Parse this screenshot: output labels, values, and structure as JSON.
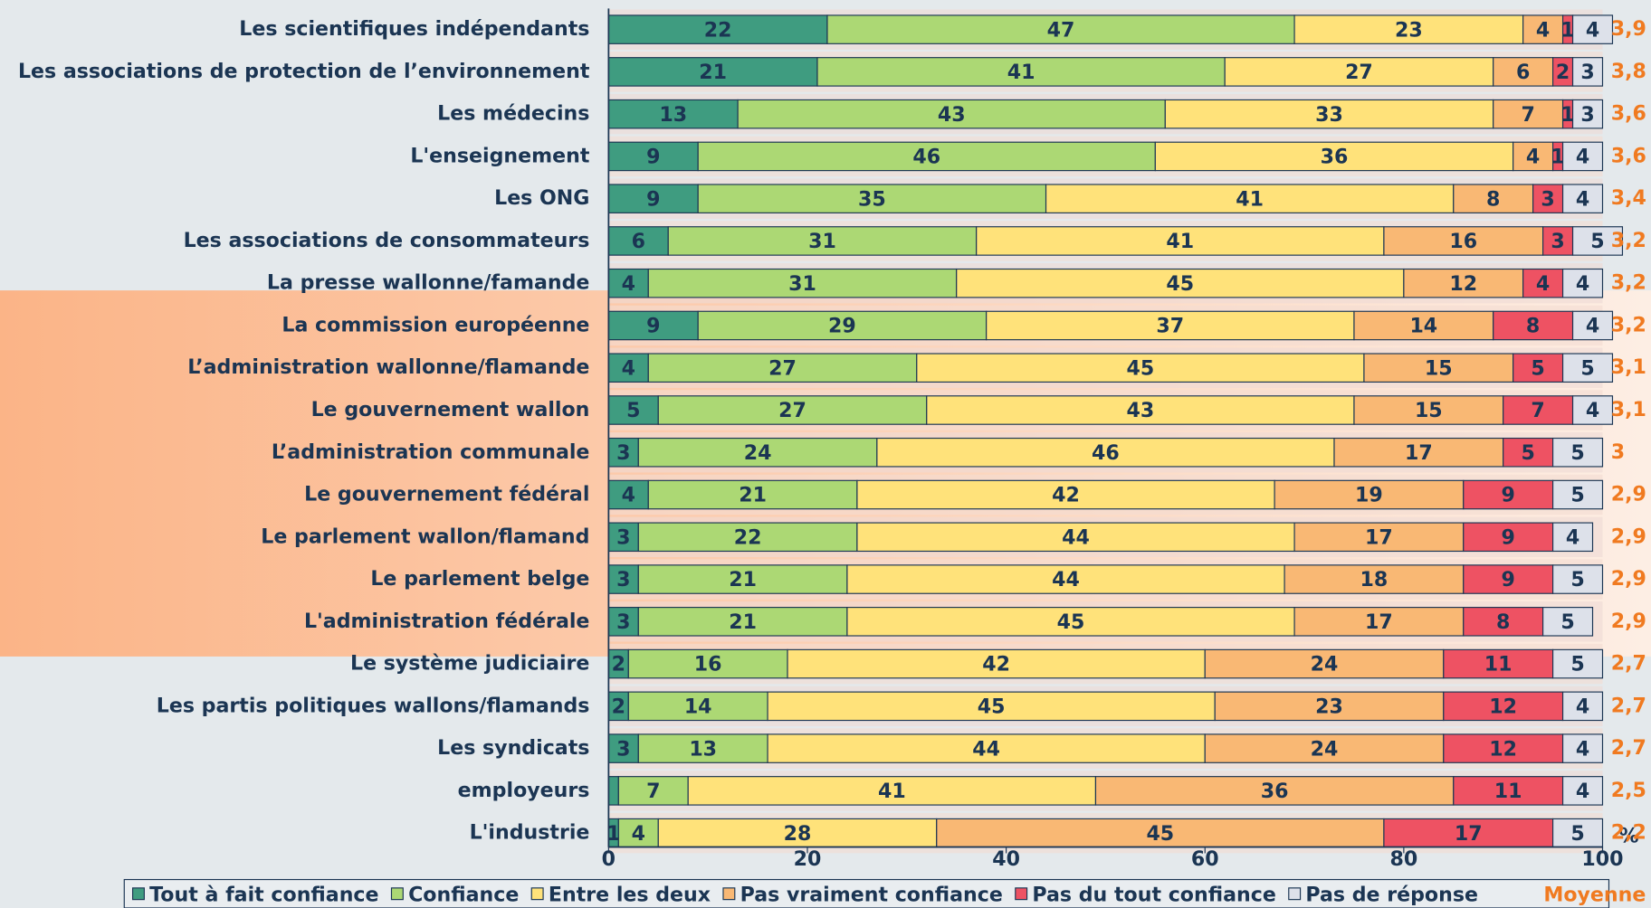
{
  "chart_data": {
    "type": "stacked-bar-horizontal",
    "categories": [
      "Les scientifiques indépendants",
      "Les associations de protection de l’environnement",
      "Les médecins",
      "L'enseignement",
      "Les ONG",
      "Les associations de consommateurs",
      "La presse wallonne/famande",
      "La commission européenne",
      "L’administration wallonne/flamande",
      "Le gouvernement wallon",
      "L’administration communale",
      "Le gouvernement fédéral",
      "Le parlement wallon/flamand",
      "Le parlement belge",
      "L'administration fédérale",
      "Le système judiciaire",
      "Les partis politiques wallons/flamands",
      "Les syndicats",
      "employeurs",
      "L'industrie"
    ],
    "series": [
      {
        "name": "Tout à fait confiance",
        "color": "#3f9c80",
        "values": [
          22,
          21,
          13,
          9,
          9,
          6,
          4,
          9,
          4,
          5,
          3,
          4,
          3,
          3,
          3,
          2,
          2,
          3,
          1,
          1
        ],
        "value_labels": [
          22,
          21,
          13,
          9,
          9,
          6,
          4,
          9,
          4,
          5,
          3,
          4,
          3,
          3,
          3,
          2,
          2,
          3,
          null,
          1
        ]
      },
      {
        "name": "Confiance",
        "color": "#acd874",
        "values": [
          47,
          41,
          43,
          46,
          35,
          31,
          31,
          29,
          27,
          27,
          24,
          21,
          22,
          21,
          21,
          16,
          14,
          13,
          7,
          4
        ]
      },
      {
        "name": "Entre les deux",
        "color": "#ffe27a",
        "values": [
          23,
          27,
          33,
          36,
          41,
          41,
          45,
          37,
          45,
          43,
          46,
          42,
          44,
          44,
          45,
          42,
          45,
          44,
          41,
          28
        ]
      },
      {
        "name": "Pas vraiment confiance",
        "color": "#f9b874",
        "values": [
          4,
          6,
          7,
          4,
          8,
          16,
          12,
          14,
          15,
          15,
          17,
          19,
          17,
          18,
          17,
          24,
          23,
          24,
          36,
          45
        ]
      },
      {
        "name": "Pas du tout confiance",
        "color": "#ee5263",
        "values": [
          1,
          2,
          1,
          1,
          3,
          3,
          4,
          8,
          5,
          7,
          5,
          9,
          9,
          9,
          8,
          11,
          12,
          12,
          11,
          17
        ]
      },
      {
        "name": "Pas de réponse",
        "color": "#dde1ea",
        "values": [
          4,
          3,
          3,
          4,
          4,
          5,
          4,
          4,
          5,
          4,
          5,
          5,
          4,
          5,
          5,
          5,
          4,
          4,
          4,
          5
        ]
      }
    ],
    "means": {
      "name": "Moyenne",
      "color": "#f07a20",
      "values": [
        3.9,
        3.8,
        3.6,
        3.6,
        3.4,
        3.2,
        3.2,
        3.2,
        3.1,
        3.1,
        3,
        2.9,
        2.9,
        2.9,
        2.9,
        2.7,
        2.7,
        2.7,
        2.5,
        2.2
      ],
      "value_labels": [
        "3,9",
        "3,8",
        "3,6",
        "3,6",
        "3,4",
        "3,2",
        "3,2",
        "3,2",
        "3,1",
        "3,1",
        "3",
        "2,9",
        "2,9",
        "2,9",
        "2,9",
        "2,7",
        "2,7",
        "2,7",
        "2,5",
        "2,2"
      ]
    },
    "x_unit": "%",
    "xlim": [
      0,
      100
    ],
    "xticks": [
      0,
      20,
      40,
      60,
      80,
      100
    ]
  }
}
